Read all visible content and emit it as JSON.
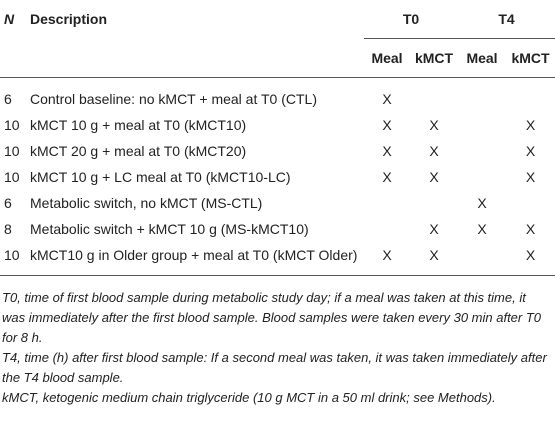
{
  "table": {
    "header": {
      "n": "N",
      "description": "Description",
      "groups": [
        "T0",
        "T4"
      ],
      "subheaders": [
        "Meal",
        "kMCT",
        "Meal",
        "kMCT"
      ]
    },
    "rows": [
      {
        "n": "6",
        "description": "Control baseline: no kMCT + meal at T0 (CTL)",
        "cells": [
          "X",
          null,
          null,
          null
        ]
      },
      {
        "n": "10",
        "description": "kMCT 10 g + meal at T0 (kMCT10)",
        "cells": [
          "X",
          "X",
          null,
          "X"
        ]
      },
      {
        "n": "10",
        "description": "kMCT 20 g + meal at T0 (kMCT20)",
        "cells": [
          "X",
          "X",
          null,
          "X"
        ]
      },
      {
        "n": "10",
        "description": "kMCT 10 g + LC meal at T0 (kMCT10-LC)",
        "cells": [
          "X",
          "X",
          null,
          "X"
        ]
      },
      {
        "n": "6",
        "description": "Metabolic switch, no kMCT (MS-CTL)",
        "cells": [
          null,
          null,
          "X",
          null
        ]
      },
      {
        "n": "8",
        "description": "Metabolic switch + kMCT 10 g (MS-kMCT10)",
        "cells": [
          null,
          "X",
          "X",
          "X"
        ]
      },
      {
        "n": "10",
        "description": "kMCT10 g in Older group + meal at T0 (kMCT Older)",
        "cells": [
          "X",
          "X",
          null,
          "X"
        ]
      }
    ],
    "footnotes": [
      "T0, time of first blood sample during metabolic study day; if a meal was taken at this time, it was immediately after the first blood sample. Blood samples were taken every 30 min after T0 for 8 h.",
      "T4, time (h) after first blood sample: If a second meal was taken, it was taken immediately after the T4 blood sample.",
      "kMCT, ketogenic medium chain triglyceride (10 g MCT in a 50 ml drink; see Methods)."
    ]
  }
}
